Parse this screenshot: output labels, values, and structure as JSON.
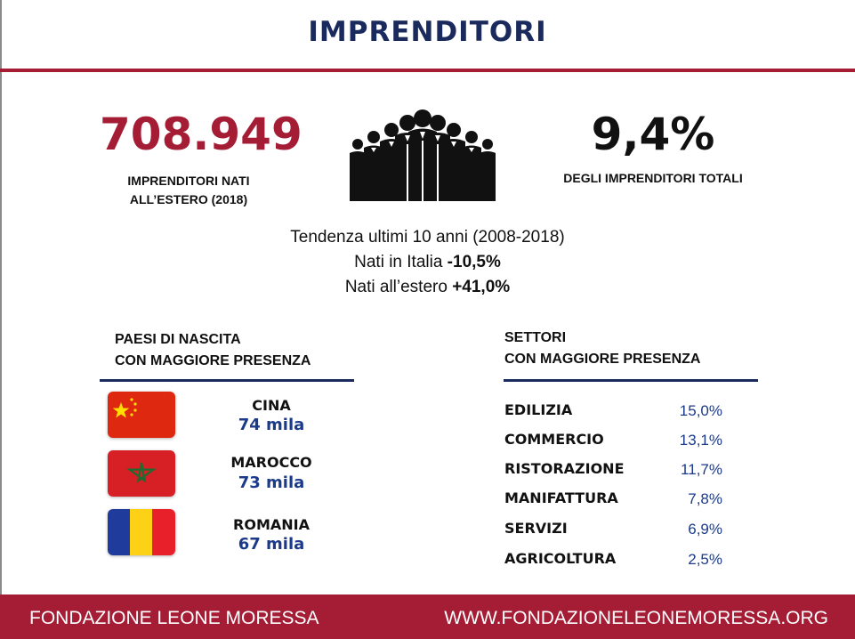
{
  "header": {
    "title": "IMPRENDITORI"
  },
  "stats": {
    "left": {
      "value": "708.949",
      "label_line1": "IMPRENDITORI NATI",
      "label_line2": "ALL’ESTERO (2018)"
    },
    "right": {
      "value": "9,4%",
      "label": "DEGLI IMPRENDITORI TOTALI"
    },
    "icon": "group-of-businesspeople-icon"
  },
  "trend": {
    "line1": "Tendenza ultimi 10 anni (2008-2018)",
    "italy_label": "Nati in Italia ",
    "italy_value": "-10,5%",
    "abroad_label": "Nati all’estero ",
    "abroad_value": "+41,0%"
  },
  "countries": {
    "heading_line1": "PAESI DI NASCITA",
    "heading_line2": "CON MAGGIORE PRESENZA",
    "items": [
      {
        "name": "CINA",
        "value": "74 mila",
        "flag": "china-flag-icon"
      },
      {
        "name": "MAROCCO",
        "value": "73 mila",
        "flag": "morocco-flag-icon"
      },
      {
        "name": "ROMANIA",
        "value": "67 mila",
        "flag": "romania-flag-icon"
      }
    ]
  },
  "sectors": {
    "heading_line1": "SETTORI",
    "heading_line2": "CON MAGGIORE PRESENZA",
    "items": [
      {
        "name": "EDILIZIA",
        "value": "15,0%"
      },
      {
        "name": "COMMERCIO",
        "value": "13,1%"
      },
      {
        "name": "RISTORAZIONE",
        "value": "11,7%"
      },
      {
        "name": "MANIFATTURA",
        "value": "7,8%"
      },
      {
        "name": "SERVIZI",
        "value": "6,9%"
      },
      {
        "name": "AGRICOLTURA",
        "value": "2,5%"
      }
    ]
  },
  "footer": {
    "left": "FONDAZIONE LEONE MORESSA",
    "right": "WWW.FONDAZIONELEONEMORESSA.ORG"
  },
  "colors": {
    "accent": "#a51c35",
    "navy": "#1b2a5c",
    "value_blue": "#1b3a8a"
  }
}
